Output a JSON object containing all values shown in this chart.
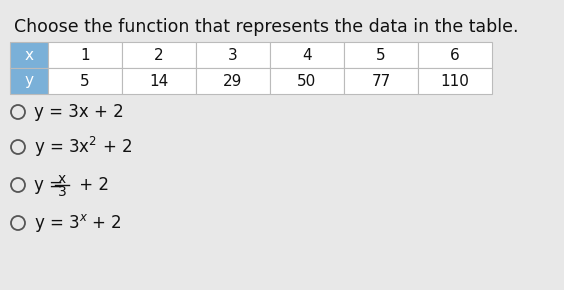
{
  "title": "Choose the function that represents the data in the table.",
  "title_fontsize": 12.5,
  "table_x_header": "x",
  "table_y_header": "y",
  "x_values": [
    "1",
    "2",
    "3",
    "4",
    "5",
    "6"
  ],
  "y_values": [
    "5",
    "14",
    "29",
    "50",
    "77",
    "110"
  ],
  "header_bg": "#7ab0d8",
  "table_bg": "#ffffff",
  "table_border": "#bbbbbb",
  "bg_color": "#e8e8e8",
  "text_color": "#111111",
  "circle_color": "#555555",
  "option1": "y = 3x + 2",
  "option2_pre": "y = 3x",
  "option2_sup": "2",
  "option2_post": " + 2",
  "option3_pre": "y = ",
  "option3_frac_num": "x",
  "option3_frac_den": "3",
  "option3_post": " + 2",
  "option4_pre": "y = 3",
  "option4_sup": "x",
  "option4_post": " + 2"
}
